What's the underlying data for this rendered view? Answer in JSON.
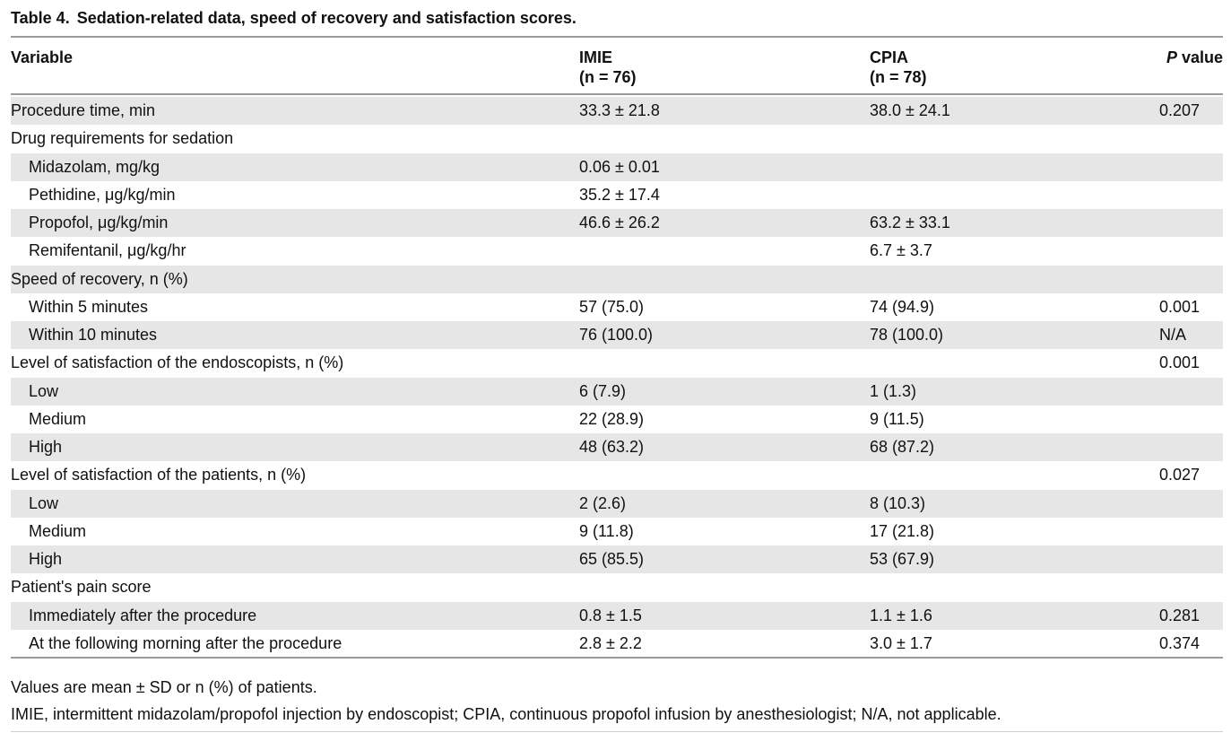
{
  "caption": {
    "number": "Table 4.",
    "title": "Sedation-related data, speed of recovery and satisfaction scores."
  },
  "header": {
    "variable": "Variable",
    "imie_name": "IMIE",
    "imie_n": "(n = 76)",
    "cpia_name": "CPIA",
    "cpia_n": "(n = 78)",
    "p_italic": "P",
    "p_word": " value"
  },
  "rows": [
    {
      "variable": "Procedure time, min",
      "imie": "33.3 ± 21.8",
      "cpia": "38.0 ± 24.1",
      "p": "0.207",
      "indent": false
    },
    {
      "variable": "Drug requirements for sedation",
      "imie": "",
      "cpia": "",
      "p": "",
      "indent": false
    },
    {
      "variable": "Midazolam, mg/kg",
      "imie": "0.06 ± 0.01",
      "cpia": "",
      "p": "",
      "indent": true
    },
    {
      "variable": "Pethidine, μg/kg/min",
      "imie": "35.2 ± 17.4",
      "cpia": "",
      "p": "",
      "indent": true
    },
    {
      "variable": "Propofol, μg/kg/min",
      "imie": "46.6 ± 26.2",
      "cpia": "63.2 ± 33.1",
      "p": "",
      "indent": true
    },
    {
      "variable": "Remifentanil, μg/kg/hr",
      "imie": "",
      "cpia": "6.7 ± 3.7",
      "p": "",
      "indent": true
    },
    {
      "variable": "Speed of recovery, n (%)",
      "imie": "",
      "cpia": "",
      "p": "",
      "indent": false
    },
    {
      "variable": "Within 5 minutes",
      "imie": "57 (75.0)",
      "cpia": "74 (94.9)",
      "p": "0.001",
      "indent": true
    },
    {
      "variable": "Within 10 minutes",
      "imie": "76 (100.0)",
      "cpia": "78 (100.0)",
      "p": "N/A",
      "indent": true
    },
    {
      "variable": "Level of satisfaction of the endoscopists, n (%)",
      "imie": "",
      "cpia": "",
      "p": "0.001",
      "indent": false
    },
    {
      "variable": "Low",
      "imie": "6 (7.9)",
      "cpia": "1 (1.3)",
      "p": "",
      "indent": true
    },
    {
      "variable": "Medium",
      "imie": "22 (28.9)",
      "cpia": "9 (11.5)",
      "p": "",
      "indent": true
    },
    {
      "variable": "High",
      "imie": "48 (63.2)",
      "cpia": "68 (87.2)",
      "p": "",
      "indent": true
    },
    {
      "variable": "Level of satisfaction of the patients, n (%)",
      "imie": "",
      "cpia": "",
      "p": "0.027",
      "indent": false
    },
    {
      "variable": "Low",
      "imie": "2 (2.6)",
      "cpia": "8 (10.3)",
      "p": "",
      "indent": true
    },
    {
      "variable": "Medium",
      "imie": "9 (11.8)",
      "cpia": "17 (21.8)",
      "p": "",
      "indent": true
    },
    {
      "variable": "High",
      "imie": "65 (85.5)",
      "cpia": "53 (67.9)",
      "p": "",
      "indent": true
    },
    {
      "variable": "Patient's pain score",
      "imie": "",
      "cpia": "",
      "p": "",
      "indent": false
    },
    {
      "variable": "Immediately after the procedure",
      "imie": "0.8 ± 1.5",
      "cpia": "1.1 ± 1.6",
      "p": "0.281",
      "indent": true
    },
    {
      "variable": "At the following morning after the procedure",
      "imie": "2.8 ± 2.2",
      "cpia": "3.0 ± 1.7",
      "p": "0.374",
      "indent": true
    }
  ],
  "footnotes": {
    "note1": "Values are mean ± SD or n (%) of patients.",
    "note2": "IMIE, intermittent midazolam/propofol injection by endoscopist; CPIA, continuous propofol infusion by anesthesiologist; N/A, not applicable."
  }
}
